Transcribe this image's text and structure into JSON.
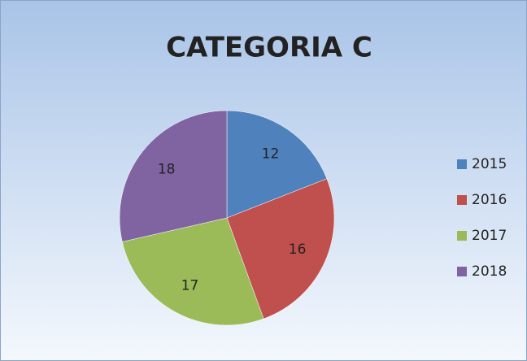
{
  "chart_data": {
    "type": "pie",
    "title": "CATEGORIA C",
    "categories": [
      "2015",
      "2016",
      "2017",
      "2018"
    ],
    "values": [
      12,
      16,
      17,
      18
    ],
    "colors": [
      "#4f81bd",
      "#c0504d",
      "#9bbb59",
      "#8064a2"
    ],
    "legend": "right"
  }
}
